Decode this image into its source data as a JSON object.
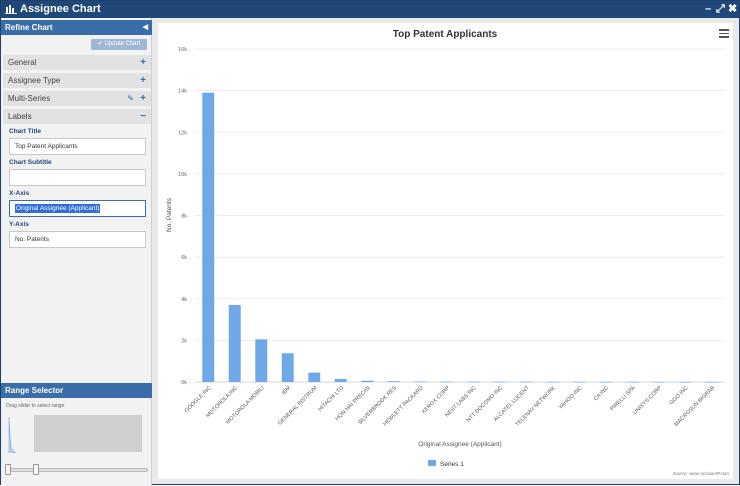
{
  "window": {
    "title": "Assignee Chart",
    "controls": [
      "–",
      "⤢",
      "✖"
    ]
  },
  "sidebar": {
    "header": "Refine Chart",
    "update_button": "✔ Update Chart",
    "sections": [
      {
        "label": "General",
        "has_edit": false
      },
      {
        "label": "Assignee Type",
        "has_edit": false
      },
      {
        "label": "Multi-Series",
        "has_edit": true
      },
      {
        "label": "Labels",
        "has_edit": false,
        "expanded": true
      }
    ],
    "fields": [
      {
        "label": "Chart Title",
        "value": "Top Patent Applicants"
      },
      {
        "label": "Chart Subtitle",
        "value": ""
      },
      {
        "label": "X-Axis",
        "value": "Original Assignee (Applicant)",
        "selected": true
      },
      {
        "label": "Y-Axis",
        "value": "No. Patents"
      }
    ],
    "range_selector": {
      "title": "Range Selector",
      "hint": "Drag slider to select range",
      "start_fraction": 0.0,
      "end_fraction": 0.2
    }
  },
  "chart_data": {
    "type": "bar",
    "title": "Top Patent Applicants",
    "xlabel": "Original Assignee (Applicant)",
    "ylabel": "No. Patents",
    "ylim": [
      0,
      16000
    ],
    "yticks": [
      0,
      2000,
      4000,
      6000,
      8000,
      10000,
      12000,
      14000,
      16000
    ],
    "ytick_labels": [
      "0k",
      "2k",
      "4k",
      "6k",
      "8k",
      "10k",
      "12k",
      "14k",
      "16k"
    ],
    "categories": [
      "GOOGLE INC",
      "MOTOROLA INC",
      "MOTOROLA MOBILI",
      "IBM",
      "GENERAL INSTRUM",
      "HITACHI LTD",
      "HON HAI PRECISI",
      "SILVERBROOK RES",
      "HEWLETT PACKARD",
      "XEROX CORP",
      "NEST LABS INC",
      "NTT DOCOMO INC",
      "ALCATEL LUCENT",
      "TELENAV NETWORK",
      "YAHOO INC",
      "CA INC",
      "PIRELLI SPA",
      "UNISYS CORP",
      "GGO INC",
      "MACROSUN BIGRAB"
    ],
    "series": [
      {
        "name": "Series 1",
        "color": "#6fa8e6",
        "values": [
          13900,
          3700,
          2050,
          1380,
          450,
          150,
          60,
          40,
          20,
          15,
          12,
          10,
          8,
          6,
          5,
          4,
          3,
          3,
          2,
          2
        ]
      }
    ],
    "legend_position": "bottom",
    "grid": true,
    "source": "Source: www.AcclaimIP.com"
  }
}
